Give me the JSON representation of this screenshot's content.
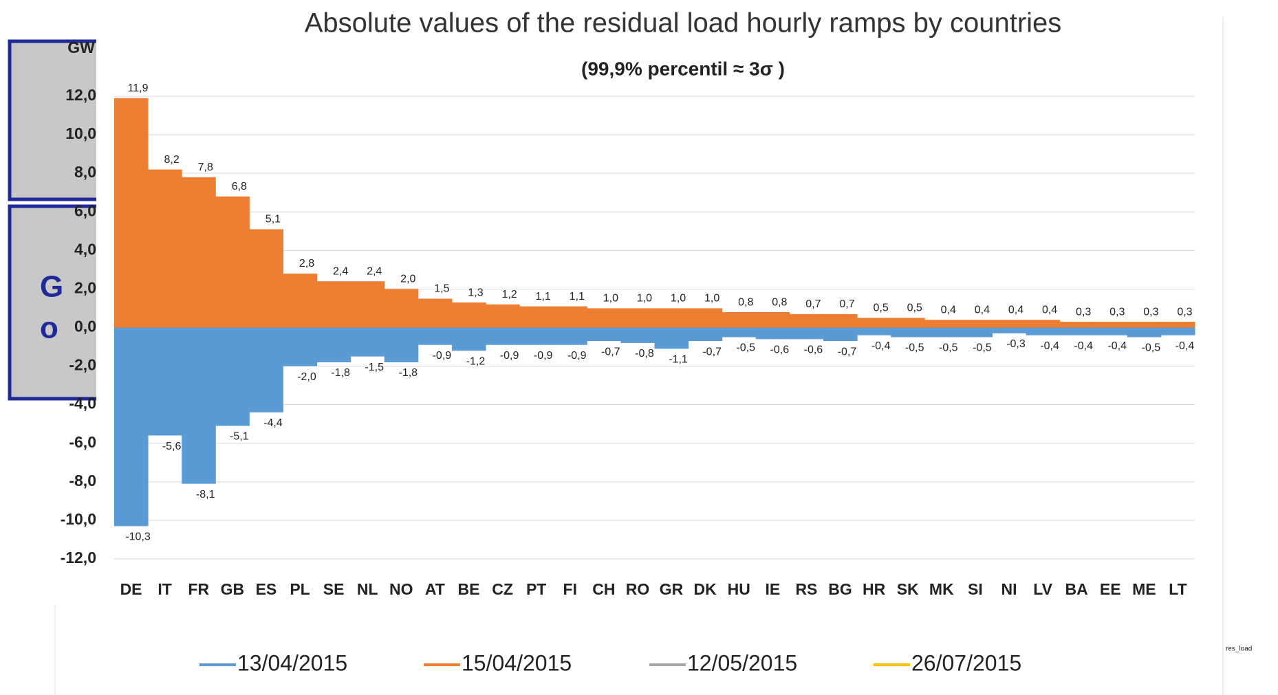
{
  "chart_data": {
    "type": "bar",
    "title": "Absolute values of the residual load hourly ramps by countries",
    "subtitle": "(99,9% percentil ≈ 3σ )",
    "y_label": "GW",
    "categories": [
      "DE",
      "IT",
      "FR",
      "GB",
      "ES",
      "PL",
      "SE",
      "NL",
      "NO",
      "AT",
      "BE",
      "CZ",
      "PT",
      "FI",
      "CH",
      "RO",
      "GR",
      "DK",
      "HU",
      "IE",
      "RS",
      "BG",
      "HR",
      "SK",
      "MK",
      "SI",
      "NI",
      "LV",
      "BA",
      "EE",
      "ME",
      "LT"
    ],
    "series": [
      {
        "color": "#ed7d31",
        "values": [
          11.9,
          8.2,
          7.8,
          6.8,
          5.1,
          2.8,
          2.4,
          2.4,
          2.0,
          1.5,
          1.3,
          1.2,
          1.1,
          1.1,
          1.0,
          1.0,
          1.0,
          1.0,
          0.8,
          0.8,
          0.7,
          0.7,
          0.5,
          0.5,
          0.4,
          0.4,
          0.4,
          0.4,
          0.3,
          0.3,
          0.3,
          0.3
        ],
        "value_labels": [
          "11,9",
          "8,2",
          "7,8",
          "6,8",
          "5,1",
          "2,8",
          "2,4",
          "2,4",
          "2,0",
          "1,5",
          "1,3",
          "1,2",
          "1,1",
          "1,1",
          "1,0",
          "1,0",
          "1,0",
          "1,0",
          "0,8",
          "0,8",
          "0,7",
          "0,7",
          "0,5",
          "0,5",
          "0,4",
          "0,4",
          "0,4",
          "0,4",
          "0,3",
          "0,3",
          "0,3",
          "0,3"
        ]
      },
      {
        "color": "#5b9bd5",
        "values": [
          -10.3,
          -5.6,
          -8.1,
          -5.1,
          -4.4,
          -2.0,
          -1.8,
          -1.5,
          -1.8,
          -0.9,
          -1.2,
          -0.9,
          -0.9,
          -0.9,
          -0.7,
          -0.8,
          -1.1,
          -0.7,
          -0.5,
          -0.6,
          -0.6,
          -0.7,
          -0.4,
          -0.5,
          -0.5,
          -0.5,
          -0.3,
          -0.4,
          -0.4,
          -0.4,
          -0.5,
          -0.4
        ],
        "value_labels": [
          "-10,3",
          "-5,6",
          "-8,1",
          "-5,1",
          "-4,4",
          "-2,0",
          "-1,8",
          "-1,5",
          "-1,8",
          "-0,9",
          "-1,2",
          "-0,9",
          "-0,9",
          "-0,9",
          "-0,7",
          "-0,8",
          "-1,1",
          "-0,7",
          "-0,5",
          "-0,6",
          "-0,6",
          "-0,7",
          "-0,4",
          "-0,5",
          "-0,5",
          "-0,5",
          "-0,3",
          "-0,4",
          "-0,4",
          "-0,4",
          "-0,5",
          "-0,4"
        ]
      }
    ],
    "ylim": [
      -12,
      12
    ],
    "yticks": [
      {
        "value": -12,
        "label": "-12,0"
      },
      {
        "value": -10,
        "label": "-10,0"
      },
      {
        "value": -8,
        "label": "-8,0"
      },
      {
        "value": -6,
        "label": "-6,0"
      },
      {
        "value": -4,
        "label": "-4,0"
      },
      {
        "value": -2,
        "label": "-2,0"
      },
      {
        "value": 0,
        "label": "0,0"
      },
      {
        "value": 2,
        "label": "2,0"
      },
      {
        "value": 4,
        "label": "4,0"
      },
      {
        "value": 6,
        "label": "6,0"
      },
      {
        "value": 8,
        "label": "8,0"
      },
      {
        "value": 10,
        "label": "10,0"
      },
      {
        "value": 12,
        "label": "12,0"
      }
    ],
    "grid": true
  },
  "background_legend": [
    {
      "name": "13/04/2015",
      "color": "#5b9bd5"
    },
    {
      "name": "15/04/2015",
      "color": "#ed7d31"
    },
    {
      "name": "12/05/2015",
      "color": "#a5a5a5"
    },
    {
      "name": "26/07/2015",
      "color": "#ffc000"
    }
  ],
  "fragments": [
    "G",
    "o",
    "res_load"
  ]
}
